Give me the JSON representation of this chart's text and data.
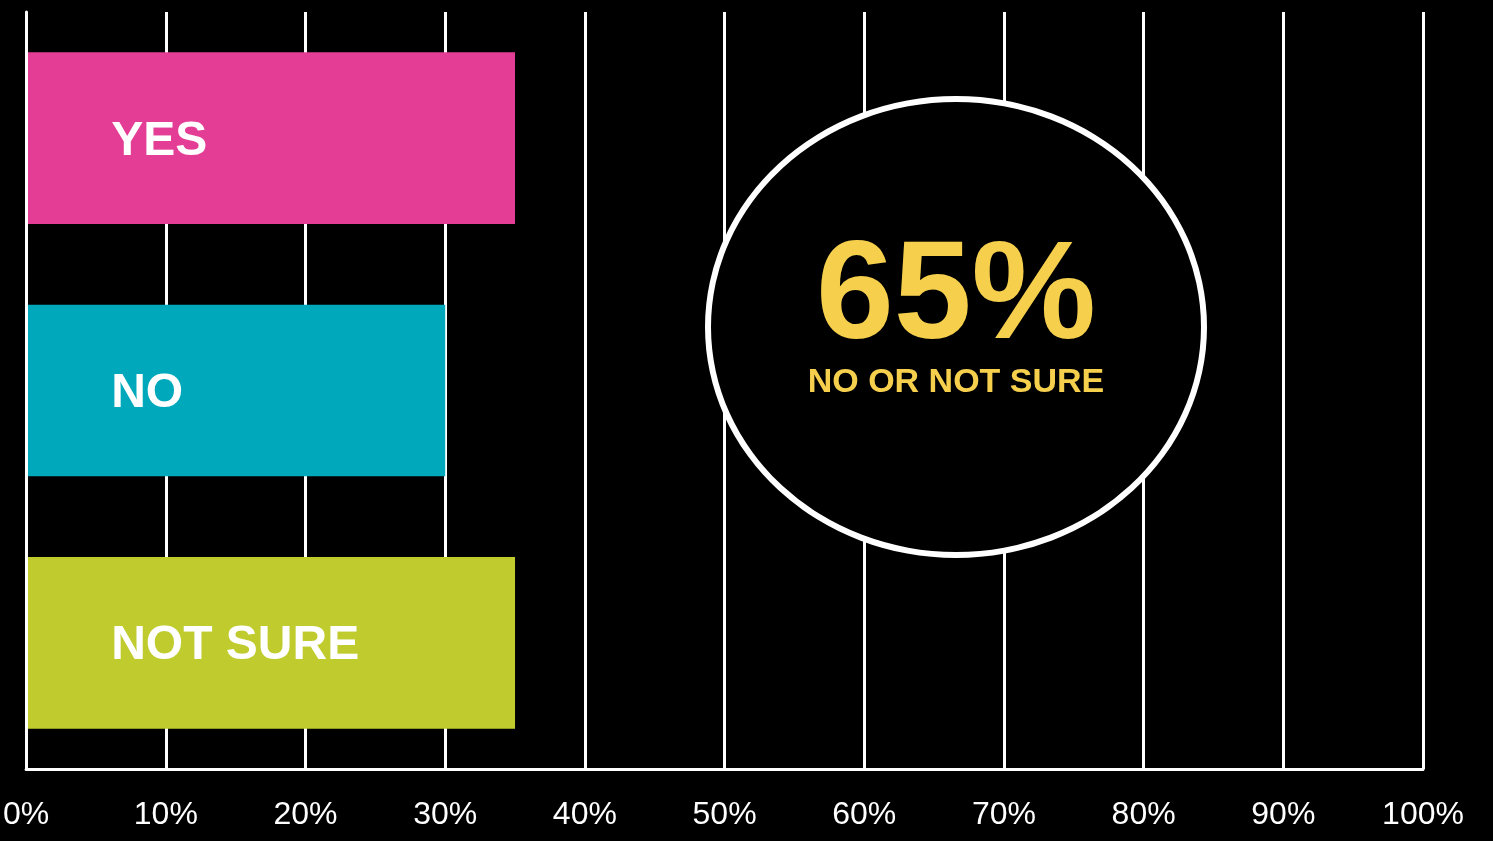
{
  "chart_data": {
    "type": "bar",
    "orientation": "horizontal",
    "categories": [
      "YES",
      "NO",
      "NOT SURE"
    ],
    "values": [
      35,
      30,
      35
    ],
    "colors": [
      "#e43d96",
      "#00a8bc",
      "#c0cc2e"
    ],
    "xlim": [
      0,
      100
    ],
    "xticks": [
      {
        "value": 0,
        "label": "0%"
      },
      {
        "value": 10,
        "label": "10%"
      },
      {
        "value": 20,
        "label": "20%"
      },
      {
        "value": 30,
        "label": "30%"
      },
      {
        "value": 40,
        "label": "40%"
      },
      {
        "value": 50,
        "label": "50%"
      },
      {
        "value": 60,
        "label": "60%"
      },
      {
        "value": 70,
        "label": "70%"
      },
      {
        "value": 80,
        "label": "80%"
      },
      {
        "value": 90,
        "label": "90%"
      },
      {
        "value": 100,
        "label": "100%"
      }
    ],
    "grid": "x",
    "annotations": [
      "65%",
      "NO OR NOT SURE"
    ]
  }
}
